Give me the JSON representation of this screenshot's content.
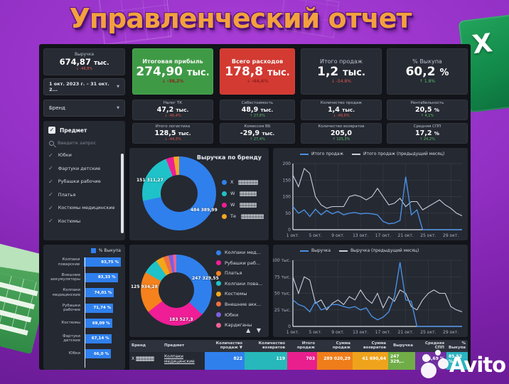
{
  "page": {
    "title": "Управленческий отчет",
    "watermark": "Avito",
    "excel_letter": "X"
  },
  "filters": {
    "date_range": "1 окт. 2023 г. – 31 окт. 2...",
    "brand": "Бренд",
    "subject_title": "Предмет",
    "search_placeholder": "Введите запрос",
    "subject_items": [
      "Юбки",
      "Фартуки детские",
      "Рубашки рабочие",
      "Платья",
      "Костюмы медицинские",
      "Костюмы"
    ]
  },
  "kpis": [
    {
      "label": "Выручка",
      "value": "674,87",
      "unit": "тыс.",
      "delta": "↓ -46,8%",
      "trend": "down",
      "variant": "dark"
    },
    {
      "label": "Итоговая прибыль",
      "value": "274,90",
      "unit": "тыс.",
      "delta": "↓ -38,2%",
      "trend": "down",
      "variant": "green"
    },
    {
      "label": "Всего расходов",
      "value": "178,8",
      "unit": "тыс.",
      "delta": "↓ -44,6%",
      "trend": "down",
      "variant": "red"
    },
    {
      "label": "Итого продаж",
      "value": "1,2",
      "unit": "тыс.",
      "delta": "↓ -54.8%",
      "trend": "down",
      "variant": "dark"
    },
    {
      "label": "% Выкупа",
      "value": "60,2",
      "unit": "%",
      "delta": "↑ 1.8%",
      "trend": "up",
      "variant": "dark"
    },
    {
      "label": "Налог ТК",
      "value": "47,2",
      "unit": "тыс.",
      "delta": "↓ -46,4%",
      "trend": "down",
      "variant": "dark"
    },
    {
      "label": "Себестоимость",
      "value": "48,9",
      "unit": "тыс.",
      "delta": "↑ 27,6%",
      "trend": "up",
      "variant": "dark"
    },
    {
      "label": "Количество продаж",
      "value": "1,4",
      "unit": "тыс.",
      "delta": "↓ -49,6%",
      "trend": "down",
      "variant": "dark"
    },
    {
      "label": "Рентабельность",
      "value": "20,5",
      "unit": "%",
      "delta": "↑ 4,1%",
      "trend": "up",
      "variant": "dark"
    },
    {
      "label": "Итого логистика",
      "value": "128,5",
      "unit": "тыс.",
      "delta": "↓ -44,3%",
      "trend": "down",
      "variant": "dark"
    },
    {
      "label": "Комиссия ВБ",
      "value": "-29,9",
      "unit": "тыс.",
      "delta": "↑ 27,4%",
      "trend": "up",
      "variant": "dark"
    },
    {
      "label": "Количество возвратов",
      "value": "205,0",
      "unit": "",
      "delta": "↑ 125,3%",
      "trend": "up",
      "variant": "dark"
    },
    {
      "label": "Средняя СПП",
      "value": "17,2",
      "unit": "%",
      "delta": "↑ 24,2%",
      "trend": "up",
      "variant": "dark"
    }
  ],
  "chart_data": [
    {
      "id": "revenue_by_brand",
      "type": "pie",
      "title": "Выручка по бренду",
      "legend_redacted": true,
      "slices": [
        {
          "label_redacted": true,
          "visible_prefix": "X",
          "color": "#2f80ed",
          "value": 484389.99,
          "value_label": "484 389,99"
        },
        {
          "label_redacted": true,
          "visible_prefix": "W",
          "color": "#1fc2c8",
          "value": 151311.27,
          "value_label": "151 311,27"
        },
        {
          "label_redacted": true,
          "visible_prefix": "W",
          "color": "#ef1e96",
          "value": 22500
        },
        {
          "label_redacted": true,
          "visible_prefix": "Те",
          "color": "#f5a623",
          "value": 16700
        }
      ]
    },
    {
      "id": "sales_by_day",
      "type": "line",
      "legend": [
        "Итого продаж",
        "Итого продаж (предыдущий месяц)"
      ],
      "colors": [
        "#4a90e2",
        "#c7d0dc"
      ],
      "x_ticks": [
        "1 окт.",
        "5 окт.",
        "9 окт.",
        "13 окт.",
        "17 окт.",
        "21 окт.",
        "25 окт.",
        "29 окт."
      ],
      "y_ticks": [
        "0",
        "50",
        "100",
        "150",
        "200"
      ],
      "ylim": [
        0,
        200
      ],
      "grid": true,
      "legend_position": "top",
      "series": [
        {
          "name": "Итого продаж",
          "values": [
            70,
            50,
            60,
            40,
            62,
            45,
            58,
            48,
            55,
            45,
            50,
            52,
            48,
            50,
            48,
            45,
            25,
            18,
            20,
            28,
            160,
            45,
            60,
            0,
            0,
            0,
            0,
            0,
            0,
            0,
            0
          ]
        },
        {
          "name": "Итого продаж (предыдущий месяц)",
          "values": [
            165,
            130,
            185,
            170,
            100,
            75,
            65,
            70,
            70,
            70,
            100,
            105,
            100,
            90,
            100,
            125,
            100,
            75,
            80,
            95,
            70,
            85,
            85,
            60,
            70,
            80,
            90,
            75,
            65,
            50,
            42
          ]
        }
      ]
    },
    {
      "id": "buyout_by_subject",
      "type": "bar",
      "legend": "% Выкупа",
      "color": "#2f80ed",
      "xlim": [
        0,
        100
      ],
      "categories": [
        "Колпаки поварские",
        "Внешние аккумуляторы",
        "Колпаки медицинские",
        "Рубашки рабочие",
        "Костюмы",
        "Фартуки детские",
        "Юбки"
      ],
      "values": [
        93.75,
        83.33,
        74.01,
        71.74,
        69.09,
        67.14,
        66.0
      ],
      "value_labels": [
        "93,75 %",
        "83,33 %",
        "74,01 %",
        "71,74 %",
        "69,09 %",
        "67,14 %",
        "66,0 %"
      ]
    },
    {
      "id": "revenue_by_subject",
      "type": "pie",
      "slices": [
        {
          "label": "Колпаки мед...",
          "color": "#2f80ed",
          "value": 247329.55,
          "value_label": "247 329,55"
        },
        {
          "label": "Рубашки раб...",
          "color": "#ef1e96",
          "value": 183527.3,
          "value_label": "183 527,3"
        },
        {
          "label": "Платья",
          "color": "#f5821d",
          "value": 125934.28,
          "value_label": "125 934,28"
        },
        {
          "label": "Колпаки пова...",
          "color": "#1fc2c8",
          "value": 47000
        },
        {
          "label": "Костюмы",
          "color": "#f2a71b",
          "value": 23600
        },
        {
          "label": "Внешние акк...",
          "color": "#f07040",
          "value": 16900
        },
        {
          "label": "Юбки",
          "color": "#7d5fe0",
          "value": 13500
        },
        {
          "label": "Кардиганы",
          "color": "#f06292",
          "value": 10100
        }
      ],
      "sort_asc": "▲",
      "sort_desc": "▼"
    },
    {
      "id": "revenue_by_day",
      "type": "line",
      "legend": [
        "Выручка",
        "Выручка (предыдущий месяц)"
      ],
      "colors": [
        "#4a90e2",
        "#c7d0dc"
      ],
      "x_ticks": [
        "1 окт.",
        "5 окт.",
        "9 окт.",
        "13 окт.",
        "17 окт.",
        "21 окт.",
        "25 окт.",
        "29 окт."
      ],
      "y_ticks": [
        "0",
        "25 тыс.",
        "50 тыс.",
        "75 тыс.",
        "100 тыс."
      ],
      "ylim": [
        0,
        100
      ],
      "grid": true,
      "legend_position": "top",
      "series": [
        {
          "name": "Выручка",
          "values": [
            40,
            33,
            30,
            22,
            38,
            25,
            28,
            33,
            33,
            30,
            28,
            30,
            25,
            28,
            15,
            10,
            14,
            22,
            45,
            97,
            40,
            38,
            0,
            0,
            0,
            0,
            0,
            0,
            0,
            0,
            0
          ]
        },
        {
          "name": "Выручка (предыдущий месяц)",
          "values": [
            75,
            50,
            75,
            70,
            35,
            40,
            25,
            35,
            40,
            33,
            45,
            40,
            55,
            42,
            35,
            50,
            28,
            45,
            38,
            55,
            50,
            30,
            25,
            40,
            50,
            55,
            50,
            50,
            30,
            25,
            22
          ]
        }
      ]
    }
  ],
  "table": {
    "headers": [
      "Бренд",
      "Предмет",
      "Количество продаж ▼",
      "Количество возвратов",
      "Итого продаж",
      "Сумма продаж",
      "Сумма возвратов",
      "Выручка",
      "Средняя СПП",
      "% Выкупа"
    ],
    "row": {
      "brand_redacted": true,
      "brand_visible_prefix": "X",
      "subject": "Колпаки медицинские",
      "cells": [
        {
          "value": "822",
          "color": "#2f80ed"
        },
        {
          "value": "119",
          "color": "#26b8ba"
        },
        {
          "value": "703",
          "color": "#ea1f8e"
        },
        {
          "value": "289 020,29",
          "color": "#ef7d1a"
        },
        {
          "value": "41 690,64",
          "color": "#efa31c"
        },
        {
          "value": "247 329,..",
          "color": "#70ad47"
        },
        {
          "value": "14,69 %",
          "color": "#7030a0"
        },
        {
          "value": "85,52 %",
          "color": "#2bb3c0"
        }
      ]
    }
  },
  "colors": {
    "accent_blue": "#2f80ed",
    "positive": "#58bf6b",
    "negative": "#e2574d",
    "card_green": "#3f9a46",
    "card_red": "#d23a32",
    "panel": "#252932",
    "background": "#9230c4",
    "title": "#f2a13d"
  }
}
